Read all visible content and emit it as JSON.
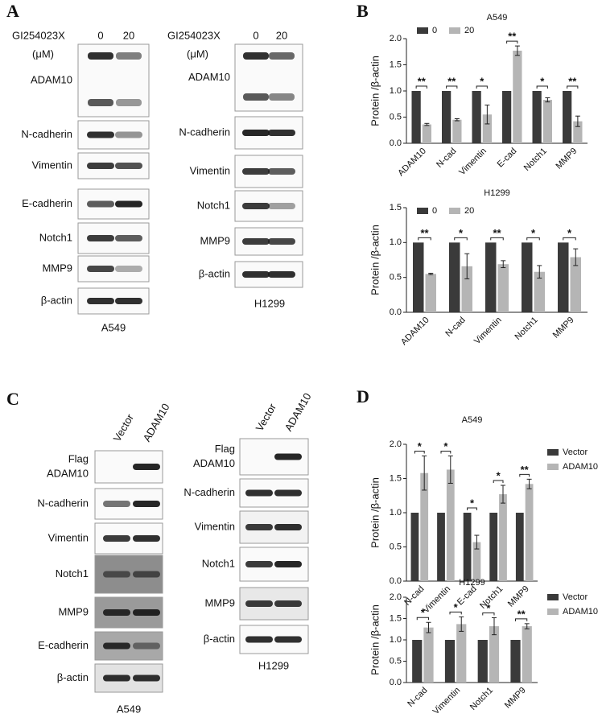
{
  "panel_labels": [
    "A",
    "B",
    "C",
    "D"
  ],
  "blots": [
    {
      "treatment": "GI254023X",
      "unit": "(μM)",
      "lanes": [
        "0",
        "20"
      ],
      "rows": [
        [
          "ADAM10"
        ],
        [
          "N-cadherin"
        ],
        [
          "Vimentin"
        ],
        [
          "E-cadherin"
        ],
        [
          "Notch1"
        ],
        [
          "MMP9"
        ],
        [
          "β-actin"
        ]
      ],
      "cell_line": "A549"
    },
    {
      "treatment": "GI254023X",
      "unit": "(μM)",
      "lanes": [
        "0",
        "20"
      ],
      "rows": [
        [
          "ADAM10"
        ],
        [
          "N-cadherin"
        ],
        [
          "Vimentin"
        ],
        [
          "Notch1"
        ],
        [
          "MMP9"
        ],
        [
          "β-actin"
        ]
      ],
      "cell_line": "H1299"
    },
    {
      "lanes": [
        "Vector",
        "ADAM10"
      ],
      "rows": [
        [
          "Flag",
          "ADAM10"
        ],
        [
          "N-cadherin"
        ],
        [
          "Vimentin"
        ],
        [
          "Notch1"
        ],
        [
          "MMP9"
        ],
        [
          "E-cadherin"
        ],
        [
          "β-actin"
        ]
      ],
      "cell_line": "A549"
    },
    {
      "lanes": [
        "Vector",
        "ADAM10"
      ],
      "rows": [
        [
          "Flag",
          "ADAM10"
        ],
        [
          "N-cadherin"
        ],
        [
          "Vimentin"
        ],
        [
          "Notch1"
        ],
        [
          "MMP9"
        ],
        [
          "β-actin"
        ]
      ],
      "cell_line": "H1299"
    }
  ],
  "chart_data": [
    {
      "type": "bar",
      "title": "A549",
      "y_label": "Protein /β-actin",
      "categories": [
        "ADAM10",
        "N-cad",
        "Vimentin",
        "E-cad",
        "Notch1",
        "MMP9"
      ],
      "series": [
        {
          "name": "0",
          "color": "#3a3a3a",
          "values": [
            1,
            1,
            1,
            1,
            1,
            1
          ]
        },
        {
          "name": "20",
          "color": "#b5b5b5",
          "values": [
            0.36,
            0.45,
            0.55,
            1.77,
            0.83,
            0.42
          ],
          "errors": [
            0.02,
            0.02,
            0.18,
            0.09,
            0.04,
            0.1
          ]
        }
      ],
      "significance": [
        "**",
        "**",
        "*",
        "**",
        "*",
        "**"
      ],
      "ylim": [
        0,
        2
      ],
      "yticks": [
        {
          "value": 0,
          "label": "0.0"
        },
        0.5,
        {
          "value": 1,
          "label": "1.0"
        },
        1.5,
        {
          "value": 2,
          "label": "2.0"
        }
      ],
      "legend": "top"
    },
    {
      "type": "bar",
      "title": "H1299",
      "y_label": "Protein /β-actin",
      "categories": [
        "ADAM10",
        "N-cad",
        "Vimentin",
        "Notch1",
        "MMP9"
      ],
      "series": [
        {
          "name": "0",
          "color": "#3a3a3a",
          "values": [
            1,
            1,
            1,
            1,
            1
          ]
        },
        {
          "name": "20",
          "color": "#b5b5b5",
          "values": [
            0.55,
            0.66,
            0.69,
            0.58,
            0.79
          ],
          "errors": [
            0.01,
            0.18,
            0.05,
            0.09,
            0.12
          ]
        }
      ],
      "significance": [
        "**",
        "*",
        "**",
        "*",
        "*"
      ],
      "ylim": [
        0,
        1.5
      ],
      "yticks": [
        {
          "value": 0,
          "label": "0.0"
        },
        0.5,
        {
          "value": 1,
          "label": "1.0"
        },
        1.5
      ],
      "legend": "top"
    },
    {
      "type": "bar",
      "title": "A549",
      "y_label": "Protein /β-actin",
      "categories": [
        "N-cad",
        "Vimentin",
        "E-cad",
        "Notch1",
        "MMP9"
      ],
      "series": [
        {
          "name": "Vector",
          "color": "#3a3a3a",
          "values": [
            1,
            1,
            1,
            1,
            1
          ]
        },
        {
          "name": "ADAM10",
          "color": "#b5b5b5",
          "values": [
            1.58,
            1.63,
            0.57,
            1.27,
            1.42
          ],
          "errors": [
            0.25,
            0.2,
            0.1,
            0.13,
            0.07
          ]
        }
      ],
      "significance": [
        "*",
        "*",
        "*",
        "*",
        "**"
      ],
      "ylim": [
        0,
        2
      ],
      "yticks": [
        {
          "value": 0,
          "label": "0.0"
        },
        0.5,
        {
          "value": 1,
          "label": "1.0"
        },
        1.5,
        {
          "value": 2,
          "label": "2.0"
        }
      ],
      "legend": "right"
    },
    {
      "type": "bar",
      "title": "H1299",
      "y_label": "Protein /β-actin",
      "categories": [
        "N-cad",
        "Vimentin",
        "Notch1",
        "MMP9"
      ],
      "series": [
        {
          "name": "Vector",
          "color": "#3a3a3a",
          "values": [
            1,
            1,
            1,
            1
          ]
        },
        {
          "name": "ADAM10",
          "color": "#b5b5b5",
          "values": [
            1.29,
            1.37,
            1.32,
            1.32
          ],
          "errors": [
            0.12,
            0.17,
            0.2,
            0.06
          ]
        }
      ],
      "significance": [
        "*",
        "*",
        "*",
        "**"
      ],
      "ylim": [
        0,
        2
      ],
      "yticks": [
        {
          "value": 0,
          "label": "0.0"
        },
        0.5,
        {
          "value": 1,
          "label": "1.0"
        },
        1.5,
        {
          "value": 2,
          "label": "2.0"
        }
      ],
      "legend": "right"
    }
  ]
}
